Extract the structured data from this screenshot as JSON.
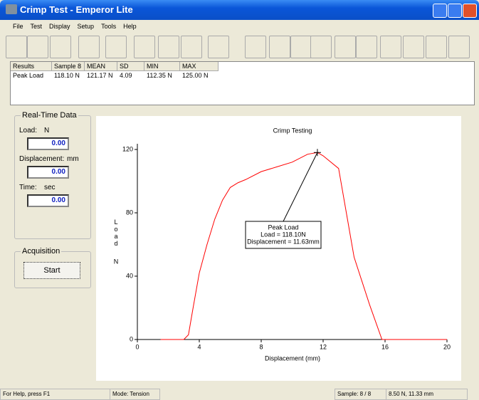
{
  "window": {
    "title": "Crimp Test - Emperor Lite"
  },
  "menu": [
    "File",
    "Test",
    "Display",
    "Setup",
    "Tools",
    "Help"
  ],
  "results": {
    "headers": [
      "Results",
      "Sample 8",
      "MEAN",
      "SD",
      "MIN",
      "MAX"
    ],
    "rows": [
      [
        "Peak Load",
        "118.10 N",
        "121.17 N",
        "4.09",
        "112.35 N",
        "125.00 N"
      ]
    ]
  },
  "realtime": {
    "title": "Real-Time Data",
    "fields": [
      {
        "label": "Load:",
        "unit": "N",
        "value": "0.00"
      },
      {
        "label": "Displacement:",
        "unit": "mm",
        "value": "0.00"
      },
      {
        "label": "Time:",
        "unit": "sec",
        "value": "0.00"
      }
    ]
  },
  "acquisition": {
    "title": "Acquisition",
    "button": "Start"
  },
  "status": [
    "For Help, press F1",
    "Mode: Tension",
    "Sample: 8 / 8",
    "8.50 N, 11.33 mm"
  ],
  "chart_data": {
    "type": "line",
    "title": "Crimp Testing",
    "x_label": "Displacement (mm)",
    "y_label": "Load",
    "y_unit": "N",
    "x": [
      1.5,
      3,
      3.3,
      3.6,
      4,
      4.5,
      5,
      5.5,
      6,
      6.5,
      7,
      8,
      9,
      10,
      11,
      11.63,
      12,
      13,
      13.5,
      14,
      15,
      15.8,
      20
    ],
    "series": [
      {
        "name": "Sample 8",
        "color": "#ff0000",
        "values": [
          0,
          0,
          3,
          20,
          42,
          60,
          76,
          88,
          96,
          99,
          101,
          106,
          109,
          112,
          117,
          118.1,
          116,
          108,
          80,
          52,
          22,
          0,
          0
        ]
      }
    ],
    "xlim": [
      0,
      20
    ],
    "xticks": [
      0,
      4,
      8,
      12,
      16,
      20
    ],
    "ylim": [
      0,
      120
    ],
    "yticks": [
      0,
      40,
      80,
      120
    ],
    "peak": {
      "x": 11.63,
      "y": 118.1
    },
    "annotation": [
      "Peak Load",
      "Load = 118.10N",
      "Displacement = 11.63mm"
    ]
  }
}
